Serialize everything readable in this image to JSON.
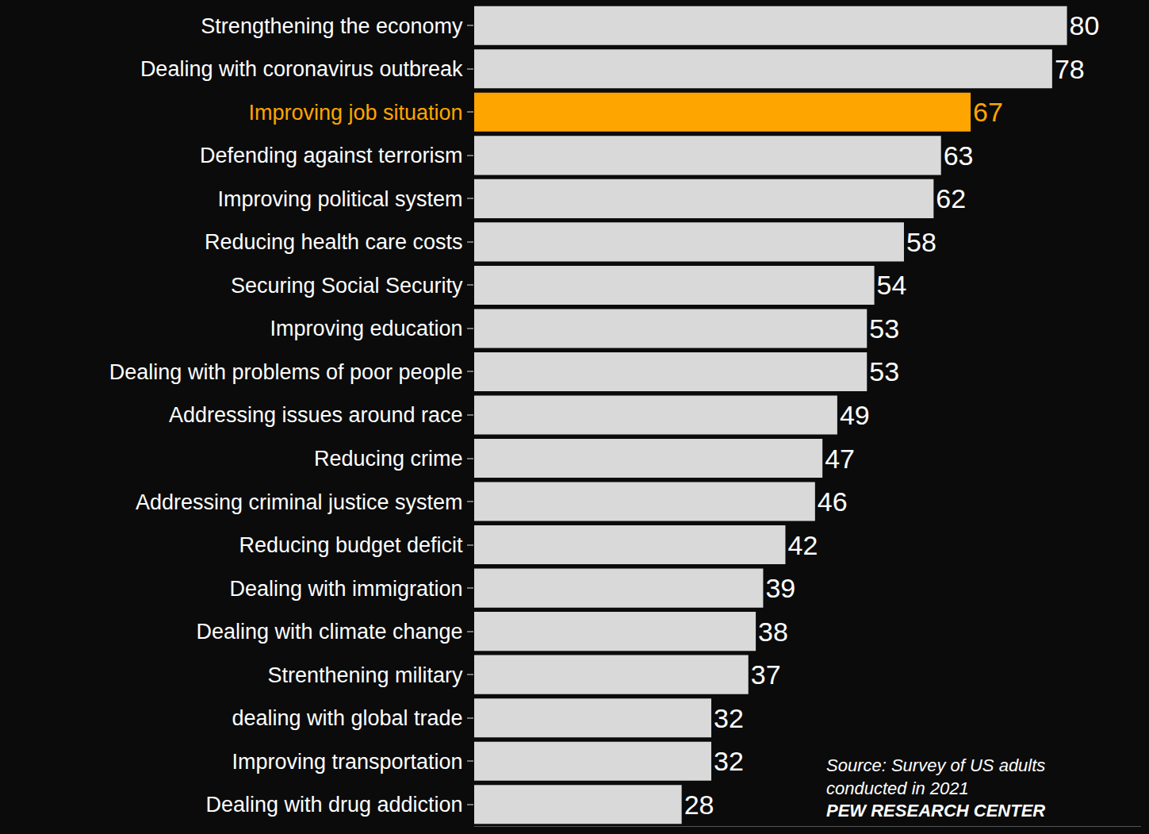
{
  "chart_data": {
    "type": "bar",
    "orientation": "horizontal",
    "categories": [
      "Strengthening the economy",
      "Dealing with coronavirus outbreak",
      "Improving job situation",
      "Defending against terrorism",
      "Improving political system",
      "Reducing health care costs",
      "Securing Social Security",
      "Improving education",
      "Dealing with problems of poor people",
      "Addressing issues around race",
      "Reducing crime",
      "Addressing criminal justice system",
      "Reducing budget deficit",
      "Dealing with immigration",
      "Dealing with climate change",
      "Strenthening military",
      "dealing with global trade",
      "Improving transportation",
      "Dealing with drug addiction"
    ],
    "values": [
      80,
      78,
      67,
      63,
      62,
      58,
      54,
      53,
      53,
      49,
      47,
      46,
      42,
      39,
      38,
      37,
      32,
      32,
      28
    ],
    "colors": [
      "#d9d9d9",
      "#d9d9d9",
      "#ffa500",
      "#d9d9d9",
      "#d9d9d9",
      "#d9d9d9",
      "#d9d9d9",
      "#d9d9d9",
      "#d9d9d9",
      "#d9d9d9",
      "#d9d9d9",
      "#d9d9d9",
      "#d9d9d9",
      "#d9d9d9",
      "#d9d9d9",
      "#d9d9d9",
      "#d9d9d9",
      "#d9d9d9",
      "#d9d9d9"
    ],
    "xlim": [
      0,
      90
    ],
    "xticks": [],
    "data_labels": true,
    "tick_labels": "y",
    "grid": false,
    "annotations": [
      "Source: Survey of US adults",
      "conducted in 2021",
      "PEW RESEARCH CENTER"
    ]
  }
}
